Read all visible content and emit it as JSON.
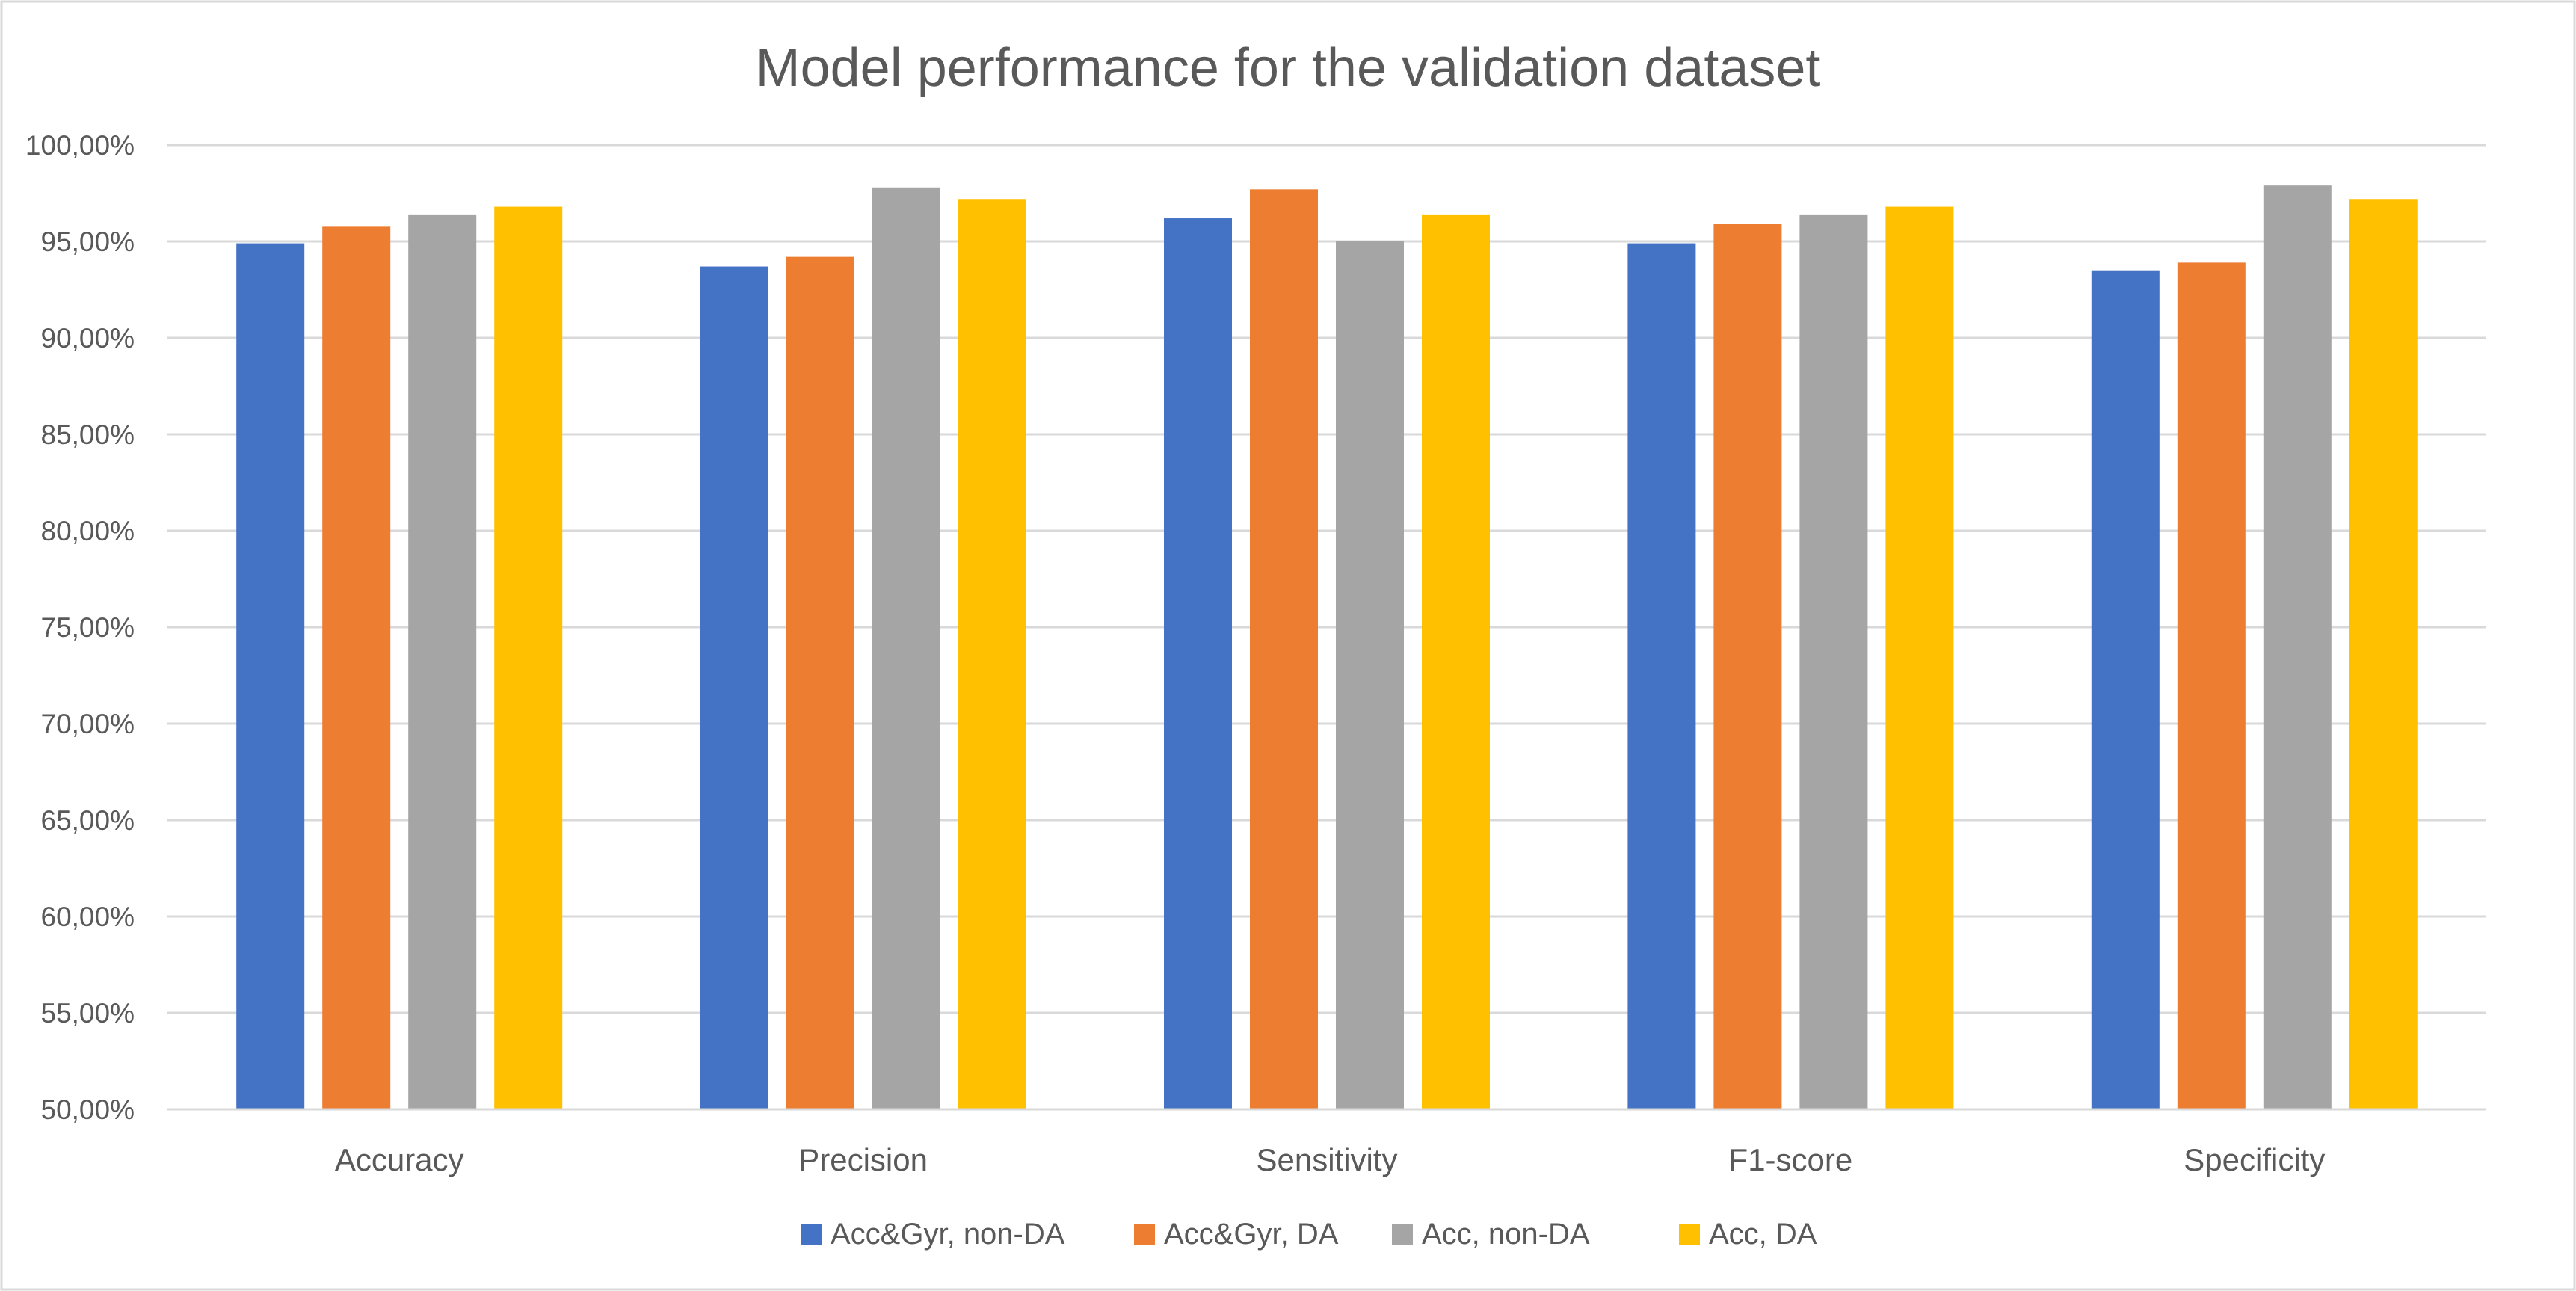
{
  "chart_data": {
    "type": "bar",
    "title": "Model performance for the validation dataset",
    "xlabel": "",
    "ylabel": "",
    "ylim": [
      50,
      100
    ],
    "ytick_step": 5,
    "ytick_labels": [
      "50,00%",
      "55,00%",
      "60,00%",
      "65,00%",
      "70,00%",
      "75,00%",
      "80,00%",
      "85,00%",
      "90,00%",
      "95,00%",
      "100,00%"
    ],
    "grid": true,
    "legend_position": "bottom",
    "categories": [
      "Accuracy",
      "Precision",
      "Sensitivity",
      "F1-score",
      "Specificity"
    ],
    "series": [
      {
        "name": "Acc&Gyr, non-DA",
        "color": "#4472C4",
        "values": [
          94.9,
          93.7,
          96.2,
          94.9,
          93.5
        ]
      },
      {
        "name": "Acc&Gyr, DA",
        "color": "#ED7D31",
        "values": [
          95.8,
          94.2,
          97.7,
          95.9,
          93.9
        ]
      },
      {
        "name": "Acc, non-DA",
        "color": "#A5A5A5",
        "values": [
          96.4,
          97.8,
          95.0,
          96.4,
          97.9
        ]
      },
      {
        "name": "Acc, DA",
        "color": "#FFC000",
        "values": [
          96.8,
          97.2,
          96.4,
          96.8,
          97.2
        ]
      }
    ]
  }
}
